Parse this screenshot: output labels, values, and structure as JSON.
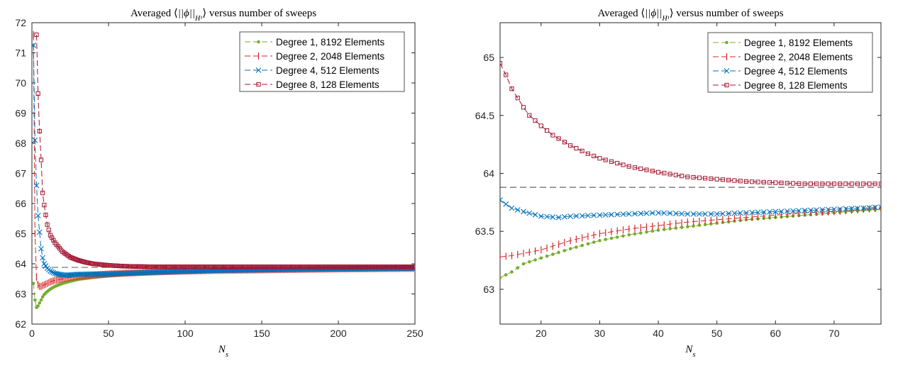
{
  "figure": {
    "panels": [
      "left",
      "right"
    ]
  },
  "chart_data": [
    {
      "type": "line",
      "title": "Averaged ⟨||ϕ||_{H¹}⟩ versus number of sweeps",
      "xlabel": "N_s",
      "ylabel": "",
      "xlim": [
        0,
        250
      ],
      "ylim": [
        62,
        72
      ],
      "xticks": [
        0,
        50,
        100,
        150,
        200,
        250
      ],
      "yticks": [
        62,
        63,
        64,
        65,
        66,
        67,
        68,
        69,
        70,
        71,
        72
      ],
      "grid": false,
      "legend_position": "top-right",
      "reference_line": {
        "y": 63.88,
        "style": "dashed",
        "color": "#404040"
      },
      "series": [
        {
          "name": "Degree 1, 8192 Elements",
          "color": "#77AC30",
          "marker": "dot",
          "x": [
            1,
            2,
            3,
            4,
            5,
            6,
            7,
            8,
            10,
            12,
            15,
            20,
            25,
            30,
            40,
            50,
            60,
            70,
            80,
            100,
            120,
            150,
            180,
            200,
            250
          ],
          "values": [
            63.35,
            62.8,
            62.55,
            62.6,
            62.7,
            62.8,
            62.9,
            62.98,
            63.08,
            63.16,
            63.25,
            63.35,
            63.42,
            63.48,
            63.55,
            63.6,
            63.64,
            63.67,
            63.7,
            63.73,
            63.76,
            63.79,
            63.81,
            63.82,
            63.84
          ]
        },
        {
          "name": "Degree 2, 2048 Elements",
          "color": "#D62728",
          "marker": "vline",
          "x": [
            1,
            2,
            3,
            4,
            5,
            6,
            7,
            8,
            10,
            12,
            15,
            20,
            25,
            30,
            40,
            50,
            60,
            70,
            80,
            100,
            120,
            150,
            180,
            200,
            250
          ],
          "values": [
            71.6,
            65.0,
            63.55,
            63.3,
            63.25,
            63.25,
            63.28,
            63.3,
            63.35,
            63.4,
            63.45,
            63.5,
            63.55,
            63.58,
            63.62,
            63.66,
            63.69,
            63.71,
            63.73,
            63.76,
            63.78,
            63.8,
            63.82,
            63.83,
            63.85
          ]
        },
        {
          "name": "Degree 4, 512 Elements",
          "color": "#0072BD",
          "marker": "x",
          "x": [
            1,
            2,
            3,
            4,
            5,
            6,
            7,
            8,
            10,
            12,
            15,
            20,
            25,
            30,
            40,
            50,
            60,
            70,
            80,
            100,
            120,
            150,
            180,
            200,
            250
          ],
          "values": [
            71.25,
            68.1,
            66.6,
            65.6,
            65.05,
            64.5,
            64.2,
            64.0,
            63.85,
            63.76,
            63.68,
            63.63,
            63.63,
            63.65,
            63.66,
            63.66,
            63.68,
            63.7,
            63.72,
            63.75,
            63.78,
            63.8,
            63.82,
            63.83,
            63.85
          ]
        },
        {
          "name": "Degree 8, 128 Elements",
          "color": "#A2142F",
          "marker": "square",
          "x": [
            3,
            4,
            5,
            6,
            7,
            8,
            10,
            12,
            15,
            20,
            25,
            30,
            35,
            40,
            50,
            60,
            70,
            80,
            100,
            120,
            150,
            180,
            200,
            250
          ],
          "values": [
            71.6,
            69.65,
            68.4,
            67.45,
            66.35,
            65.95,
            65.3,
            64.95,
            64.7,
            64.4,
            64.22,
            64.12,
            64.05,
            64.0,
            63.95,
            63.92,
            63.91,
            63.9,
            63.9,
            63.9,
            63.9,
            63.9,
            63.9,
            63.9
          ]
        }
      ]
    },
    {
      "type": "line",
      "title": "Averaged ⟨||ϕ||_{H¹}⟩ versus number of sweeps",
      "xlabel": "N_s",
      "ylabel": "",
      "xlim": [
        13,
        78
      ],
      "ylim": [
        62.7,
        65.3
      ],
      "xticks": [
        20,
        30,
        40,
        50,
        60,
        70
      ],
      "yticks": [
        63,
        63.5,
        64,
        64.5,
        65
      ],
      "grid": false,
      "legend_position": "top-right",
      "reference_line": {
        "y": 63.88,
        "style": "dashed",
        "color": "#404040"
      },
      "series": [
        {
          "name": "Degree 1, 8192 Elements",
          "color": "#77AC30",
          "marker": "dot",
          "x": [
            13,
            15,
            17,
            20,
            25,
            30,
            35,
            40,
            45,
            50,
            55,
            60,
            65,
            70,
            75,
            78
          ],
          "values": [
            63.1,
            63.15,
            63.22,
            63.27,
            63.35,
            63.42,
            63.47,
            63.51,
            63.54,
            63.57,
            63.6,
            63.62,
            63.64,
            63.66,
            63.68,
            63.69
          ]
        },
        {
          "name": "Degree 2, 2048 Elements",
          "color": "#D62728",
          "marker": "vline",
          "x": [
            13,
            15,
            17,
            20,
            25,
            30,
            35,
            40,
            45,
            50,
            55,
            60,
            65,
            70,
            75,
            78
          ],
          "values": [
            63.28,
            63.29,
            63.31,
            63.34,
            63.42,
            63.48,
            63.52,
            63.55,
            63.58,
            63.6,
            63.62,
            63.64,
            63.66,
            63.67,
            63.69,
            63.7
          ]
        },
        {
          "name": "Degree 4, 512 Elements",
          "color": "#0072BD",
          "marker": "x",
          "x": [
            13,
            15,
            17,
            20,
            23,
            25,
            30,
            35,
            40,
            45,
            50,
            55,
            60,
            65,
            70,
            75,
            78
          ],
          "values": [
            63.77,
            63.7,
            63.67,
            63.63,
            63.62,
            63.63,
            63.64,
            63.65,
            63.66,
            63.65,
            63.65,
            63.66,
            63.67,
            63.68,
            63.69,
            63.7,
            63.71
          ]
        },
        {
          "name": "Degree 8, 128 Elements",
          "color": "#A2142F",
          "marker": "square",
          "x": [
            13,
            14,
            15,
            16,
            17,
            18,
            20,
            22,
            25,
            28,
            30,
            35,
            40,
            45,
            50,
            55,
            60,
            65,
            70,
            75,
            78
          ],
          "values": [
            64.95,
            64.85,
            64.73,
            64.65,
            64.57,
            64.5,
            64.41,
            64.33,
            64.24,
            64.17,
            64.13,
            64.06,
            64.01,
            63.97,
            63.95,
            63.93,
            63.92,
            63.91,
            63.91,
            63.91,
            63.91
          ]
        }
      ]
    }
  ]
}
